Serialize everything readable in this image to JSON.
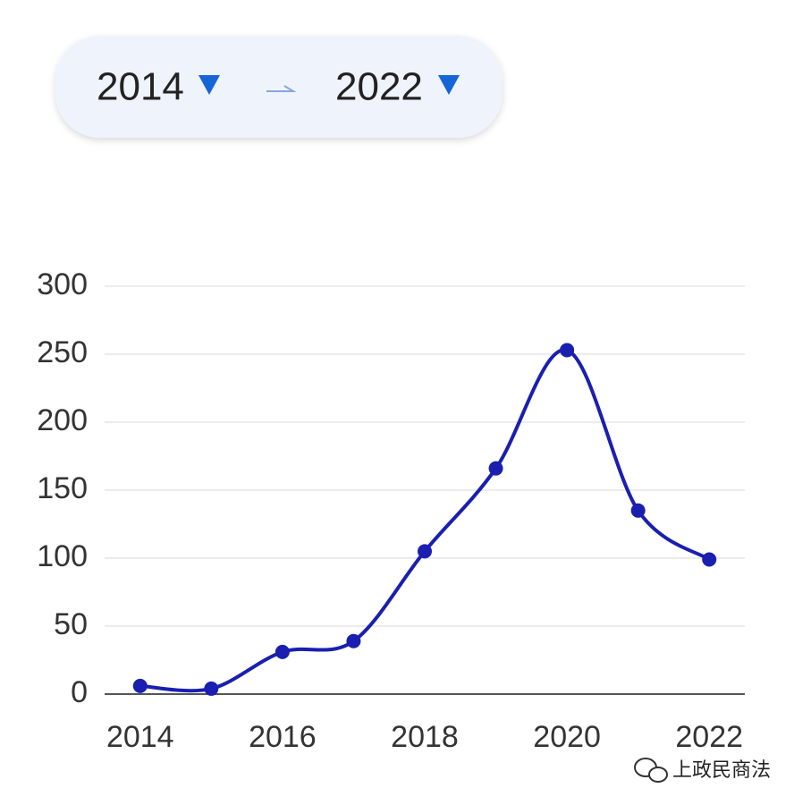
{
  "selector": {
    "start": "2014",
    "end": "2022"
  },
  "watermark": "上政民商法",
  "chart_data": {
    "type": "line",
    "x": [
      2014,
      2015,
      2016,
      2017,
      2018,
      2019,
      2020,
      2021,
      2022
    ],
    "values": [
      6,
      4,
      31,
      39,
      105,
      166,
      253,
      135,
      99
    ],
    "color": "#1a1fb0",
    "xlim": [
      2013.5,
      2022.5
    ],
    "xticks": [
      2014,
      2016,
      2018,
      2020,
      2022
    ],
    "ylim": [
      0,
      300
    ],
    "yticks": [
      0,
      50,
      100,
      150,
      200,
      250,
      300
    ],
    "grid": true
  }
}
